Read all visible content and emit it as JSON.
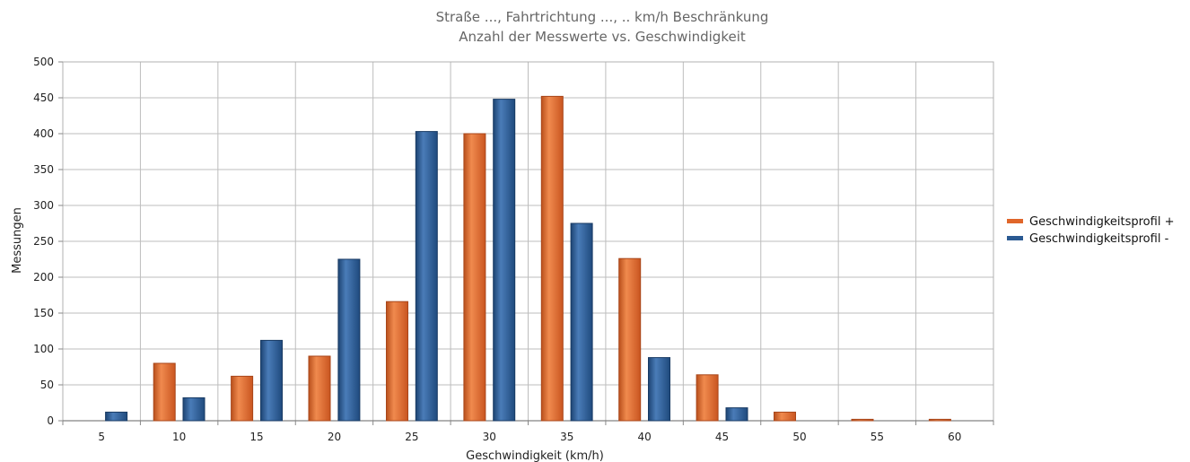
{
  "chart_data": {
    "type": "bar",
    "title": "Straße ..., Fahrtrichtung ..., .. km/h Beschränkung",
    "subtitle": "Anzahl der Messwerte vs. Geschwindigkeit",
    "xlabel": "Geschwindigkeit (km/h)",
    "ylabel": "Messungen",
    "categories": [
      "5",
      "10",
      "15",
      "20",
      "25",
      "30",
      "35",
      "40",
      "45",
      "50",
      "55",
      "60"
    ],
    "ylim": [
      0,
      500
    ],
    "yticks": [
      0,
      50,
      100,
      150,
      200,
      250,
      300,
      350,
      400,
      450,
      500
    ],
    "grid": true,
    "legend_position": "right",
    "series": [
      {
        "name": "Geschwindigkeitsprofil +",
        "color": "#e0662a",
        "values": [
          0,
          80,
          62,
          90,
          166,
          400,
          452,
          226,
          64,
          12,
          2,
          2
        ]
      },
      {
        "name": "Geschwindigkeitsprofil -",
        "color": "#2a5a92",
        "values": [
          12,
          32,
          112,
          225,
          403,
          448,
          275,
          88,
          18,
          0,
          0,
          0
        ]
      }
    ]
  }
}
